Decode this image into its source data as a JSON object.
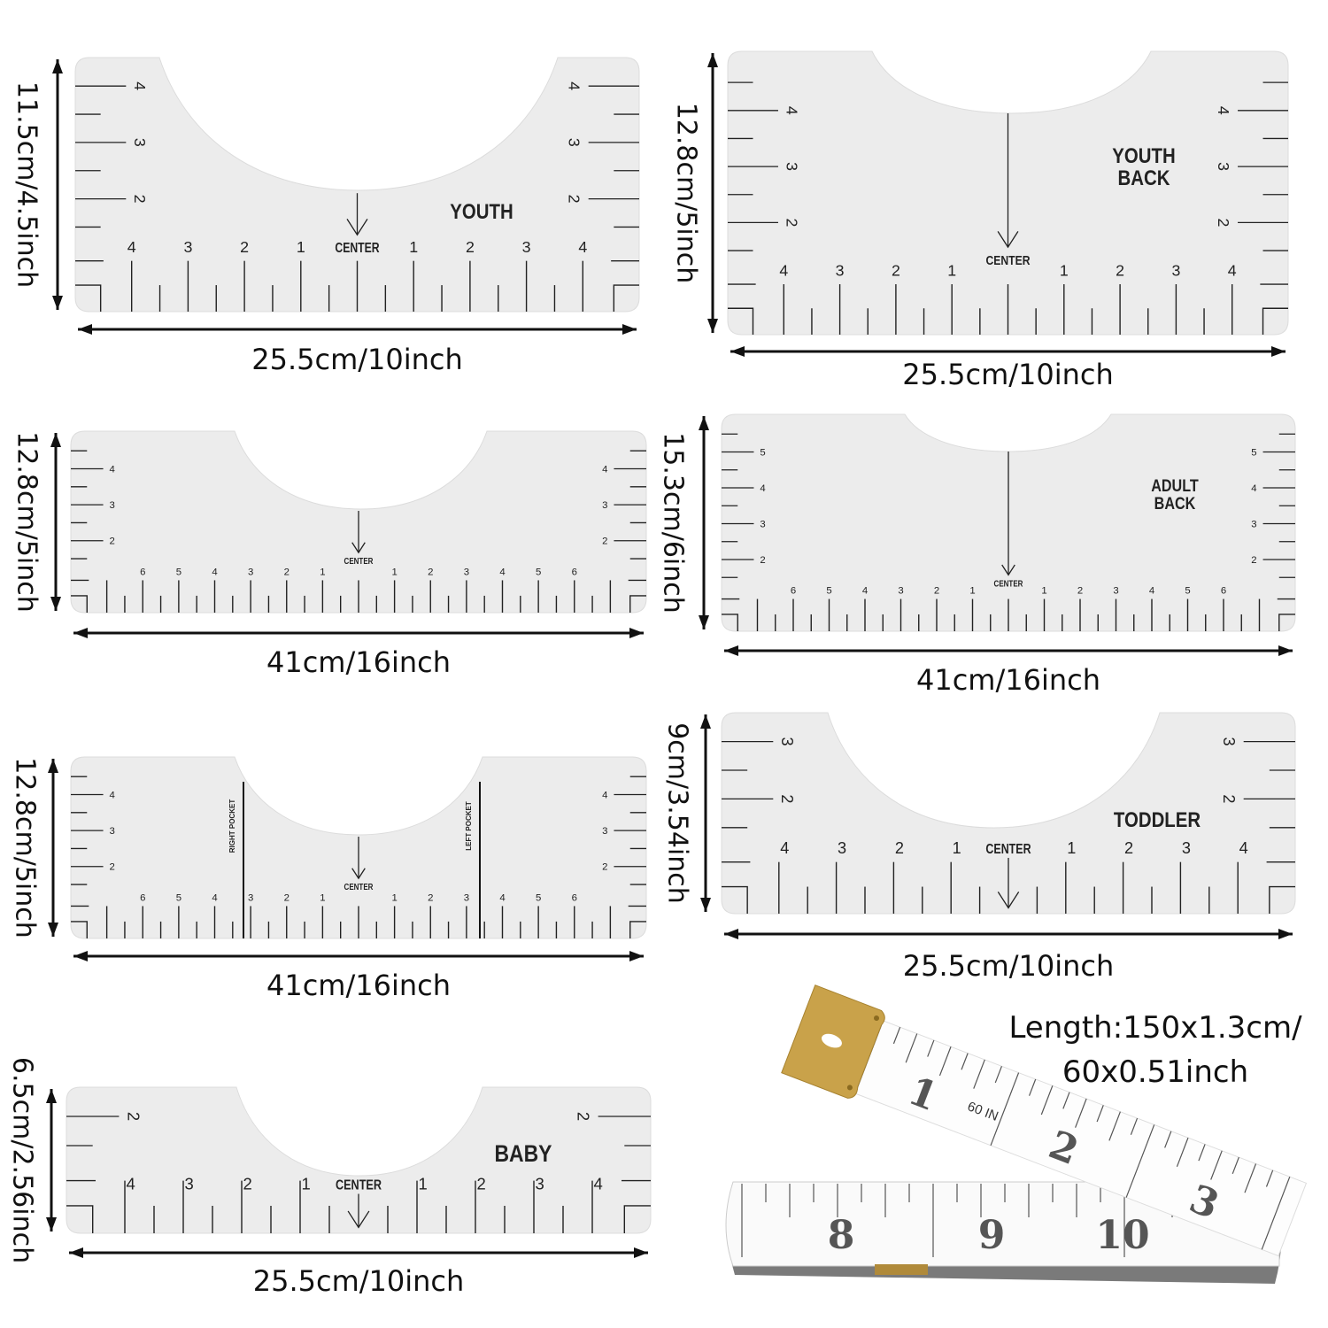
{
  "rulers": [
    {
      "name": "youth",
      "label": [
        "YOUTH"
      ],
      "center": "CENTER",
      "height_dim": "11.5cm/4.5inch",
      "width_dim": "25.5cm/10inch",
      "bottom_numbers": [
        "1",
        "2",
        "3",
        "4"
      ],
      "side_numbers": [
        "2",
        "3",
        "4"
      ]
    },
    {
      "name": "youth-back",
      "label": [
        "YOUTH",
        "BACK"
      ],
      "center": "CENTER",
      "height_dim": "12.8cm/5inch",
      "width_dim": "25.5cm/10inch",
      "bottom_numbers": [
        "1",
        "2",
        "3",
        "4"
      ],
      "side_numbers": [
        "2",
        "3",
        "4"
      ]
    },
    {
      "name": "adult",
      "label": [],
      "center": "CENTER",
      "height_dim": "12.8cm/5inch",
      "width_dim": "41cm/16inch",
      "bottom_numbers": [
        "1",
        "2",
        "3",
        "4",
        "5",
        "6"
      ],
      "side_numbers": [
        "2",
        "3",
        "4"
      ]
    },
    {
      "name": "adult-back",
      "label": [
        "ADULT",
        "BACK"
      ],
      "center": "CENTER",
      "height_dim": "15.3cm/6inch",
      "width_dim": "41cm/16inch",
      "bottom_numbers": [
        "1",
        "2",
        "3",
        "4",
        "5",
        "6"
      ],
      "side_numbers": [
        "2",
        "3",
        "4",
        "5"
      ]
    },
    {
      "name": "pocket",
      "label": [],
      "pockets": [
        "RIGHT POCKET",
        "LEFT POCKET"
      ],
      "center": "CENTER",
      "height_dim": "12.8cm/5inch",
      "width_dim": "41cm/16inch",
      "bottom_numbers": [
        "1",
        "2",
        "3",
        "4",
        "5",
        "6"
      ],
      "side_numbers": [
        "2",
        "3",
        "4"
      ]
    },
    {
      "name": "toddler",
      "label": [
        "TODDLER"
      ],
      "center": "CENTER",
      "height_dim": "9cm/3.54inch",
      "width_dim": "25.5cm/10inch",
      "bottom_numbers": [
        "1",
        "2",
        "3",
        "4"
      ],
      "side_numbers": [
        "2",
        "3"
      ]
    },
    {
      "name": "baby",
      "label": [
        "BABY"
      ],
      "center": "CENTER",
      "height_dim": "6.5cm/2.56inch",
      "width_dim": "25.5cm/10inch",
      "bottom_numbers": [
        "1",
        "2",
        "3",
        "4"
      ],
      "side_numbers": [
        "2"
      ]
    }
  ],
  "tape": {
    "length_line1": "Length:150x1.3cm/",
    "length_line2": "60x0.51inch",
    "mark": "60 IN",
    "upper_numbers": [
      "1",
      "2",
      "3"
    ],
    "lower_numbers": [
      "8",
      "9",
      "10"
    ],
    "tip_color": "#c9a24a"
  },
  "colors": {
    "ruler_fill": "#ececec",
    "ink": "#111111"
  }
}
